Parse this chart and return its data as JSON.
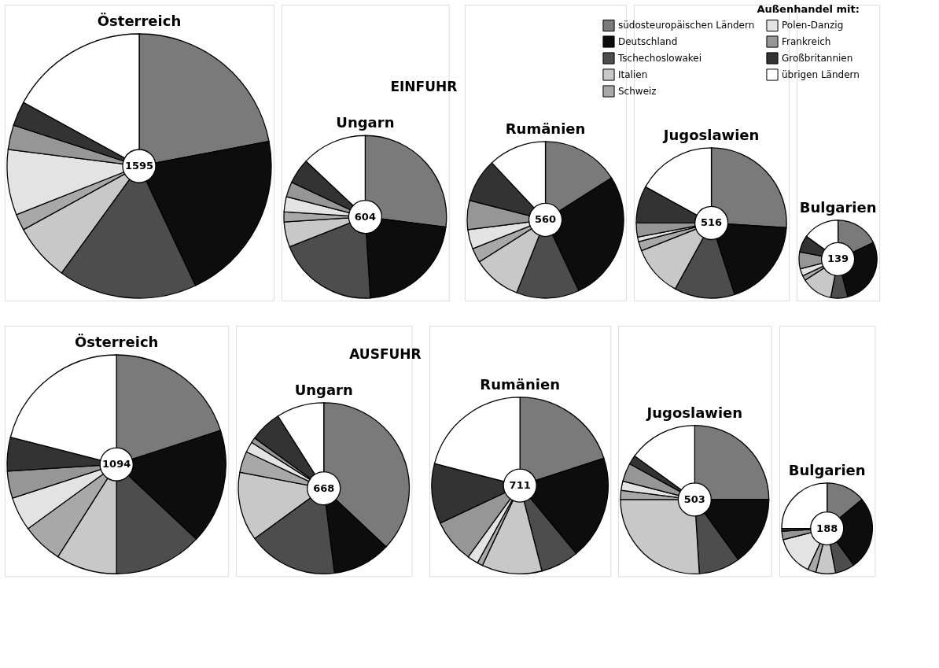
{
  "chart_data": [
    {
      "type": "donut",
      "title": "Österreich",
      "annotations": [
        "1595"
      ],
      "legend": "top right",
      "legend_title": "Außenhandel mit:",
      "categories": [
        "südosteuropäischen Ländern",
        "Deutschland",
        "Tschechoslowakei",
        "Italien",
        "Schweiz",
        "Polen-Danzig",
        "Frankreich",
        "Großbritannien",
        "übrigen Ländern"
      ],
      "colors": [
        "#7a7a7a",
        "#0d0d0d",
        "#4d4d4d",
        "#c8c8c8",
        "#a8a8a8",
        "#e3e3e3",
        "#969696",
        "#333333",
        "#ffffff"
      ],
      "values": [
        22,
        21,
        17,
        7,
        2,
        8,
        3,
        3,
        17
      ]
    },
    {
      "type": "donut",
      "title": "Ungarn",
      "subtitle": "EINFUHR",
      "annotations": [
        "604"
      ],
      "values": [
        27,
        22,
        20,
        5,
        2,
        3,
        3,
        5,
        13
      ]
    },
    {
      "type": "donut",
      "title": "Rumänien",
      "annotations": [
        "560"
      ],
      "values": [
        16,
        27,
        13,
        10,
        3,
        4,
        6,
        9,
        12
      ]
    },
    {
      "type": "donut",
      "title": "Jugoslawien",
      "annotations": [
        "516"
      ],
      "values": [
        26,
        19,
        13,
        11,
        2,
        1,
        3,
        8,
        17
      ]
    },
    {
      "type": "donut",
      "title": "Bulgarien",
      "annotations": [
        "139"
      ],
      "values": [
        18,
        28,
        7,
        13,
        2,
        3,
        7,
        7,
        15
      ]
    },
    {
      "type": "donut",
      "title": "Österreich",
      "annotations": [
        "1094"
      ],
      "values": [
        20,
        17,
        13,
        9,
        6,
        5,
        4,
        5,
        21
      ]
    },
    {
      "type": "donut",
      "title": "Ungarn",
      "subtitle": "AUSFUHR",
      "annotations": [
        "668"
      ],
      "values": [
        37,
        11,
        17,
        13,
        4,
        2,
        1,
        6,
        9
      ]
    },
    {
      "type": "donut",
      "title": "Rumänien",
      "annotations": [
        "711"
      ],
      "values": [
        20,
        19,
        7,
        11,
        1,
        2,
        8,
        11,
        21
      ]
    },
    {
      "type": "donut",
      "title": "Jugoslawien",
      "annotations": [
        "503"
      ],
      "values": [
        25,
        15,
        9,
        26,
        2,
        2,
        4,
        2,
        15
      ]
    },
    {
      "type": "donut",
      "title": "Bulgarien",
      "annotations": [
        "188"
      ],
      "values": [
        14,
        26,
        7,
        7,
        3,
        14,
        3,
        1,
        25
      ]
    }
  ]
}
